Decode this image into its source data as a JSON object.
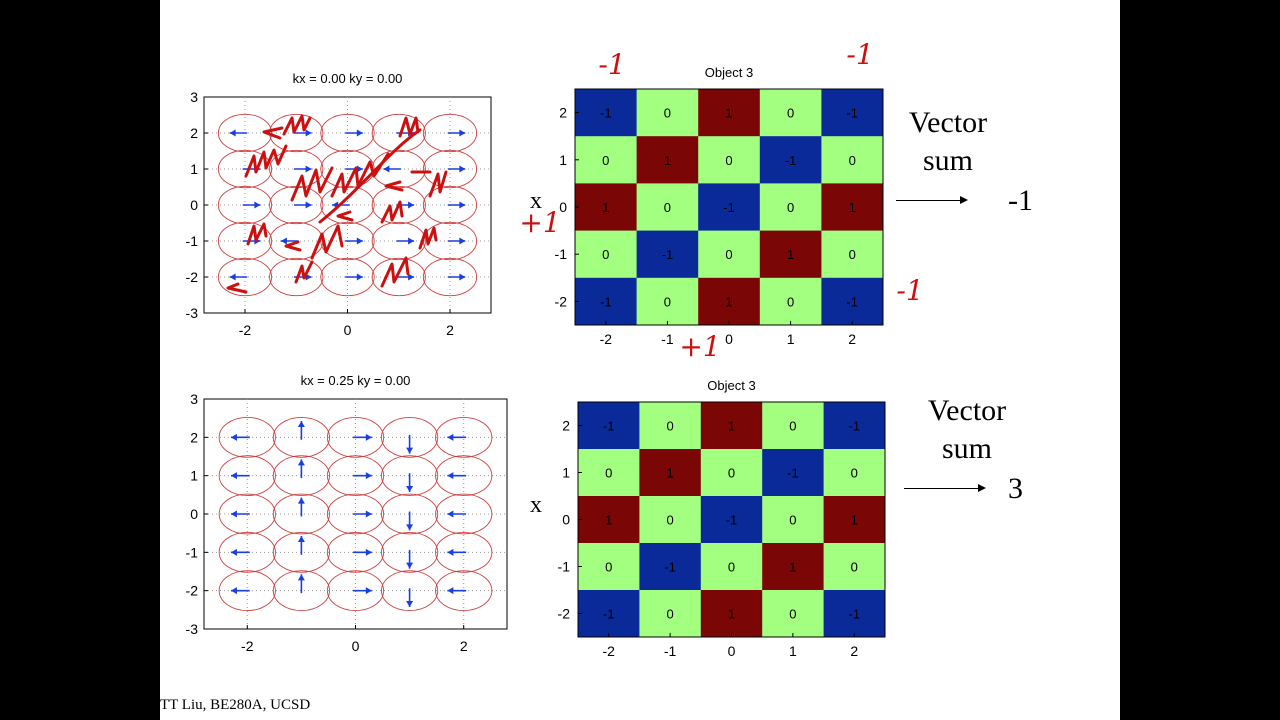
{
  "footer": "TT Liu, BE280A, UCSD",
  "panels": [
    {
      "title": "kx = 0.00 ky = 0.00",
      "tick_labels_x": [
        "-2",
        "0",
        "2"
      ],
      "tick_labels_y": [
        "3",
        "2",
        "1",
        "0",
        "-1",
        "-2",
        "-3"
      ]
    },
    {
      "title": "kx = 0.25 ky = 0.00",
      "tick_labels_x": [
        "-2",
        "0",
        "2"
      ],
      "tick_labels_y": [
        "3",
        "2",
        "1",
        "0",
        "-1",
        "-2",
        "-3"
      ]
    }
  ],
  "objects": [
    {
      "title": "Object 3",
      "x_axis_letter": "x",
      "vector_sum_label": [
        "Vector",
        "sum"
      ],
      "vector_sum_value": "-1"
    },
    {
      "title": "Object 3",
      "x_axis_letter": "x",
      "vector_sum_label": [
        "Vector",
        "sum"
      ],
      "vector_sum_value": "3"
    }
  ],
  "handwriting": [
    "-1",
    "-1",
    "+1",
    "+1",
    "-1"
  ],
  "colors": {
    "dark_blue": "#0a2a9a",
    "dark_red": "#7a0606",
    "light_green": "#a2ff80",
    "circle_red": "#d04040",
    "arrow_blue": "#1a3fe0",
    "ink_red": "#cc1010"
  },
  "chart_data": [
    {
      "type": "quiver",
      "title": "kx = 0.00 ky = 0.00",
      "xlim": [
        -2.8,
        2.8
      ],
      "ylim": [
        -3,
        3
      ],
      "x": [
        -2,
        -1,
        0,
        1,
        2
      ],
      "y": [
        2,
        1,
        0,
        -1,
        -2
      ],
      "phase_deg": [
        [
          180,
          0,
          0,
          0,
          0
        ],
        [
          0,
          0,
          0,
          180,
          0
        ],
        [
          0,
          0,
          180,
          0,
          0
        ],
        [
          0,
          180,
          0,
          0,
          0
        ],
        [
          180,
          0,
          0,
          0,
          0
        ]
      ]
    },
    {
      "type": "heatmap",
      "title": "Object 3",
      "x": [
        -2,
        -1,
        0,
        1,
        2
      ],
      "y": [
        2,
        1,
        0,
        -1,
        -2
      ],
      "values": [
        [
          -1,
          0,
          1,
          0,
          -1
        ],
        [
          0,
          1,
          0,
          -1,
          0
        ],
        [
          1,
          0,
          -1,
          0,
          1
        ],
        [
          0,
          -1,
          0,
          1,
          0
        ],
        [
          -1,
          0,
          1,
          0,
          -1
        ]
      ]
    },
    {
      "type": "quiver",
      "title": "kx = 0.25 ky = 0.00",
      "xlim": [
        -2.8,
        2.8
      ],
      "ylim": [
        -3,
        3
      ],
      "x": [
        -2,
        -1,
        0,
        1,
        2
      ],
      "y": [
        2,
        1,
        0,
        -1,
        -2
      ],
      "phase_deg": [
        [
          180,
          90,
          0,
          270,
          180
        ],
        [
          180,
          90,
          0,
          270,
          180
        ],
        [
          180,
          90,
          0,
          270,
          180
        ],
        [
          180,
          90,
          0,
          270,
          180
        ],
        [
          180,
          90,
          0,
          270,
          180
        ]
      ]
    },
    {
      "type": "heatmap",
      "title": "Object 3",
      "x": [
        -2,
        -1,
        0,
        1,
        2
      ],
      "y": [
        2,
        1,
        0,
        -1,
        -2
      ],
      "values": [
        [
          -1,
          0,
          1,
          0,
          -1
        ],
        [
          0,
          1,
          0,
          -1,
          0
        ],
        [
          1,
          0,
          -1,
          0,
          1
        ],
        [
          0,
          -1,
          0,
          1,
          0
        ],
        [
          -1,
          0,
          1,
          0,
          -1
        ]
      ]
    }
  ]
}
